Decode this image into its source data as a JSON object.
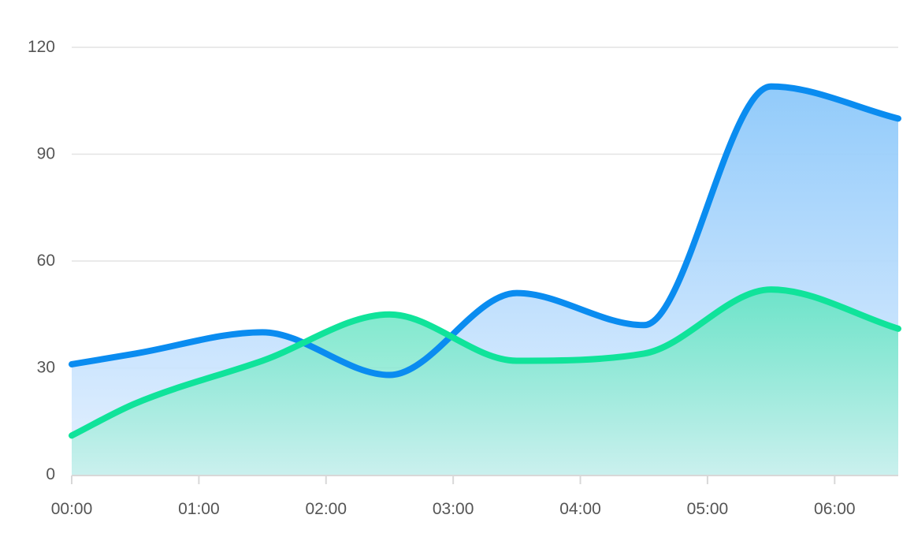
{
  "chart_data": {
    "type": "area",
    "title": "",
    "xlabel": "",
    "ylabel": "",
    "x_tick_labels": [
      "00:00",
      "01:00",
      "02:00",
      "03:00",
      "04:00",
      "05:00",
      "06:00"
    ],
    "x": [
      0,
      0.5,
      1.5,
      2.5,
      3.5,
      4.5,
      5.5,
      6.5
    ],
    "xlim": [
      0,
      6.5
    ],
    "ylim": [
      0,
      120
    ],
    "y_ticks": [
      0,
      30,
      60,
      90,
      120
    ],
    "grid": true,
    "legend": "none",
    "series": [
      {
        "color": "#0a8cf0",
        "values": [
          31,
          34,
          40,
          28,
          51,
          42,
          109,
          100
        ]
      },
      {
        "color": "#10e39a",
        "values": [
          11,
          20,
          32,
          45,
          32,
          34,
          52,
          41
        ]
      }
    ]
  }
}
